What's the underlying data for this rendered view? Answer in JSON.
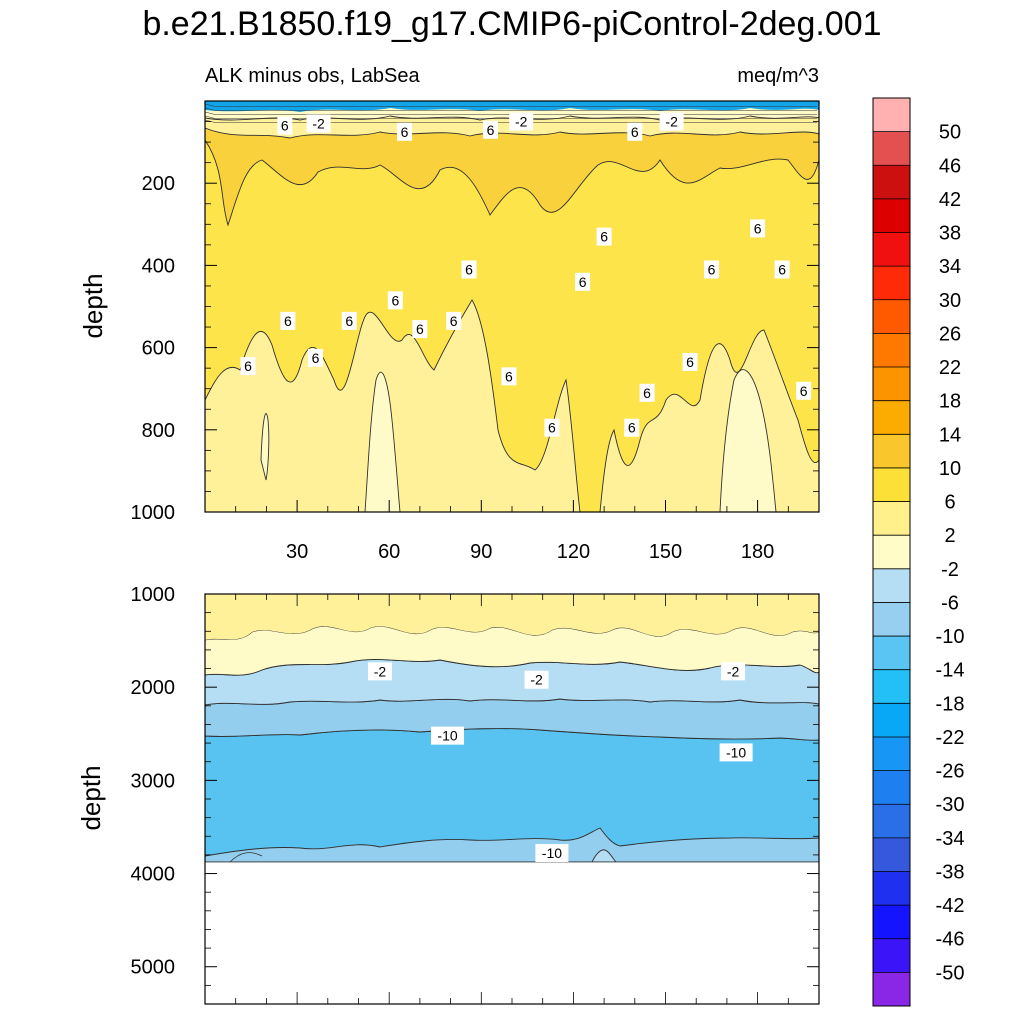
{
  "colors": {
    "band_m2_2": "#fffbc8",
    "band_2_6": "#fff09a",
    "band_6_10": "#fde44a",
    "band_10_14": "#f9d13c",
    "band_m6_m2": "#b5def5",
    "band_m10_m6": "#94ceee",
    "band_m14_m10": "#58c2f1",
    "surface_deep": "#12a4e8",
    "line": "#303030",
    "frame": "#000000"
  },
  "chart_data": [
    {
      "type": "contour",
      "title": "b.e21.B1850.f19_g17.CMIP6-piControl-2deg.001",
      "subtitle_left": "ALK minus obs, LabSea",
      "subtitle_right": "meq/m^3",
      "ylabel": "depth",
      "ylim": [
        1000,
        0
      ],
      "xlim": [
        0,
        200
      ],
      "xticks": [
        30,
        60,
        90,
        120,
        150,
        180
      ],
      "yticks": [
        200,
        400,
        600,
        800,
        1000
      ],
      "contour_labels": [
        {
          "x": 26,
          "depth": 60,
          "text": "6"
        },
        {
          "x": 37,
          "depth": 55,
          "text": "-2"
        },
        {
          "x": 65,
          "depth": 75,
          "text": "6"
        },
        {
          "x": 93,
          "depth": 70,
          "text": "6"
        },
        {
          "x": 103,
          "depth": 50,
          "text": "-2"
        },
        {
          "x": 140,
          "depth": 75,
          "text": "6"
        },
        {
          "x": 152,
          "depth": 50,
          "text": "-2"
        },
        {
          "x": 130,
          "depth": 330,
          "text": "6"
        },
        {
          "x": 180,
          "depth": 310,
          "text": "6"
        },
        {
          "x": 86,
          "depth": 410,
          "text": "6"
        },
        {
          "x": 123,
          "depth": 440,
          "text": "6"
        },
        {
          "x": 165,
          "depth": 410,
          "text": "6"
        },
        {
          "x": 188,
          "depth": 410,
          "text": "6"
        },
        {
          "x": 27,
          "depth": 535,
          "text": "6"
        },
        {
          "x": 47,
          "depth": 535,
          "text": "6"
        },
        {
          "x": 62,
          "depth": 485,
          "text": "6"
        },
        {
          "x": 70,
          "depth": 555,
          "text": "6"
        },
        {
          "x": 81,
          "depth": 535,
          "text": "6"
        },
        {
          "x": 14,
          "depth": 645,
          "text": "6"
        },
        {
          "x": 36,
          "depth": 625,
          "text": "6"
        },
        {
          "x": 99,
          "depth": 670,
          "text": "6"
        },
        {
          "x": 158,
          "depth": 635,
          "text": "6"
        },
        {
          "x": 144,
          "depth": 710,
          "text": "6"
        },
        {
          "x": 195,
          "depth": 705,
          "text": "6"
        },
        {
          "x": 113,
          "depth": 795,
          "text": "6"
        },
        {
          "x": 139,
          "depth": 795,
          "text": "6"
        }
      ]
    },
    {
      "type": "contour",
      "ylabel": "depth",
      "ylim": [
        5400,
        1000
      ],
      "xlim": [
        0,
        200
      ],
      "yticks": [
        1000,
        2000,
        3000,
        4000,
        5000
      ],
      "bathymetry_depth": 3880,
      "contour_labels": [
        {
          "x": 57,
          "depth": 1830,
          "text": "-2"
        },
        {
          "x": 108,
          "depth": 1920,
          "text": "-2"
        },
        {
          "x": 172,
          "depth": 1830,
          "text": "-2"
        },
        {
          "x": 79,
          "depth": 2520,
          "text": "-10"
        },
        {
          "x": 173,
          "depth": 2700,
          "text": "-10"
        },
        {
          "x": 113,
          "depth": 3780,
          "text": "-10"
        }
      ]
    }
  ],
  "colorbar": {
    "labels": [
      "50",
      "46",
      "42",
      "38",
      "34",
      "30",
      "26",
      "22",
      "18",
      "14",
      "10",
      "6",
      "2",
      "-2",
      "-6",
      "-10",
      "-14",
      "-18",
      "-22",
      "-26",
      "-30",
      "-34",
      "-38",
      "-42",
      "-46",
      "-50"
    ],
    "colors": [
      "#ffb1b1",
      "#e45050",
      "#cc1010",
      "#dc0000",
      "#f01010",
      "#ff2a08",
      "#ff5a00",
      "#ff7800",
      "#fc9400",
      "#fcac00",
      "#f9c62c",
      "#fce038",
      "#fff08c",
      "#fffcc8",
      "#b5def5",
      "#96cff0",
      "#5ac4f2",
      "#22c0f6",
      "#08a8f6",
      "#1896f6",
      "#1e80f0",
      "#2a6ee8",
      "#3558dc",
      "#1f30f0",
      "#1414ff",
      "#3c14f8",
      "#8a26e6"
    ]
  }
}
